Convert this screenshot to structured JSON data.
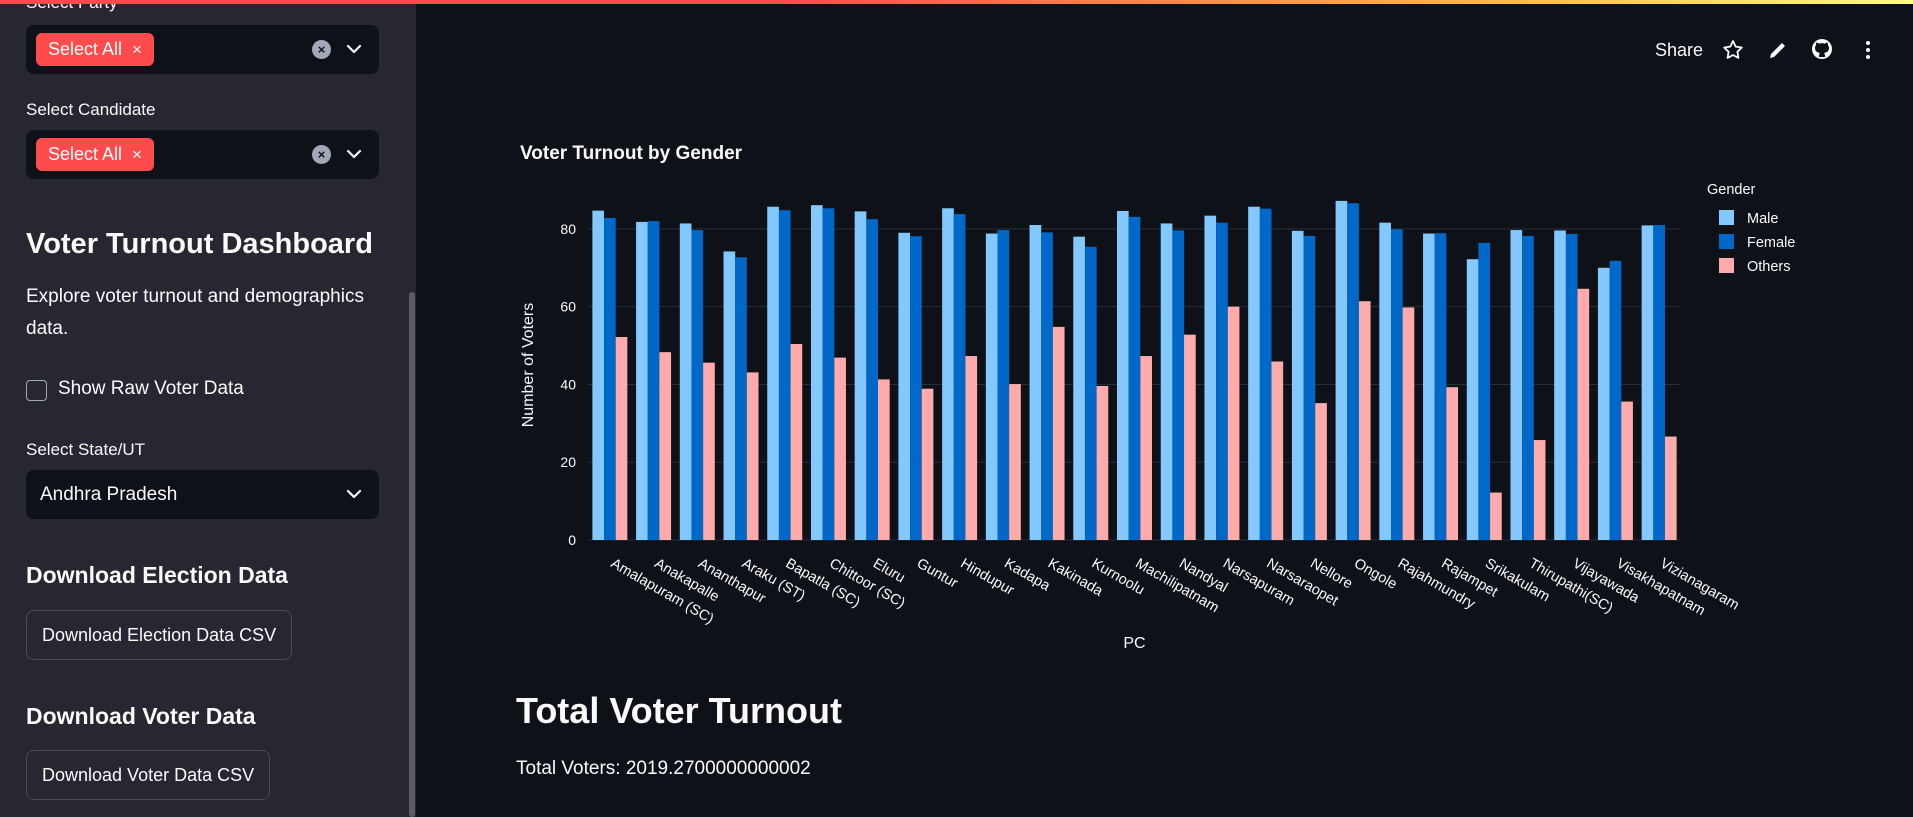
{
  "sidebar": {
    "party_label": "Select Party",
    "party_tag": "Select All",
    "candidate_label": "Select Candidate",
    "candidate_tag": "Select All",
    "tag_close": "×",
    "dashboard_title": "Voter Turnout Dashboard",
    "dashboard_desc": "Explore voter turnout and demographics data.",
    "raw_data_checkbox": "Show Raw Voter Data",
    "state_label": "Select State/UT",
    "state_value": "Andhra Pradesh",
    "download_election_heading": "Download Election Data",
    "download_election_button": "Download Election Data CSV",
    "download_voter_heading": "Download Voter Data",
    "download_voter_button": "Download Voter Data CSV"
  },
  "toolbar": {
    "share": "Share"
  },
  "main": {
    "total_heading": "Total Voter Turnout",
    "total_text": "Total Voters: 2019.2700000000002"
  },
  "colors": {
    "accent": "#ff4b4b",
    "male": "#83c9ff",
    "female": "#0068c9",
    "others": "#ffabab"
  },
  "chart_data": {
    "type": "bar",
    "title": "Voter Turnout by Gender",
    "xlabel": "PC",
    "ylabel": "Number of Voters",
    "legend_title": "Gender",
    "legend_position": "top-right",
    "ylim": [
      0,
      90
    ],
    "yticks": [
      0,
      20,
      40,
      60,
      80
    ],
    "grid": true,
    "categories": [
      "Amalapuram (SC)",
      "Anakapalle",
      "Ananthapur",
      "Araku (ST)",
      "Bapatla (SC)",
      "Chittoor (SC)",
      "Eluru",
      "Guntur",
      "Hindupur",
      "Kadapa",
      "Kakinada",
      "Kurnoolu",
      "Machilipatnam",
      "Nandyal",
      "Narsapuram",
      "Narsaraopet",
      "Nellore",
      "Ongole",
      "Rajahmundry",
      "Rajampet",
      "Srikakulam",
      "Thirupathi(SC)",
      "Vijayawada",
      "Visakhapatnam",
      "Vizianagaram"
    ],
    "series": [
      {
        "name": "Male",
        "values": [
          84.7,
          81.8,
          81.4,
          74.2,
          85.7,
          86.1,
          84.5,
          79.0,
          85.3,
          78.8,
          81.0,
          78.0,
          84.6,
          81.4,
          83.4,
          85.7,
          79.5,
          87.2,
          81.6,
          78.8,
          72.2,
          79.7,
          79.6,
          70.0,
          80.9
        ]
      },
      {
        "name": "Female",
        "values": [
          82.8,
          82.0,
          79.7,
          72.7,
          84.8,
          85.3,
          82.5,
          78.1,
          83.8,
          79.7,
          79.1,
          75.4,
          83.1,
          79.6,
          81.6,
          85.2,
          78.2,
          86.6,
          79.9,
          78.9,
          76.4,
          78.2,
          78.7,
          71.8,
          81.0
        ]
      },
      {
        "name": "Others",
        "values": [
          52.2,
          48.3,
          45.6,
          43.1,
          50.4,
          46.9,
          41.3,
          38.9,
          47.3,
          40.1,
          54.8,
          39.6,
          47.3,
          52.8,
          60.0,
          45.9,
          35.2,
          61.4,
          59.8,
          39.3,
          12.2,
          25.7,
          64.6,
          35.6,
          26.6
        ]
      }
    ]
  }
}
